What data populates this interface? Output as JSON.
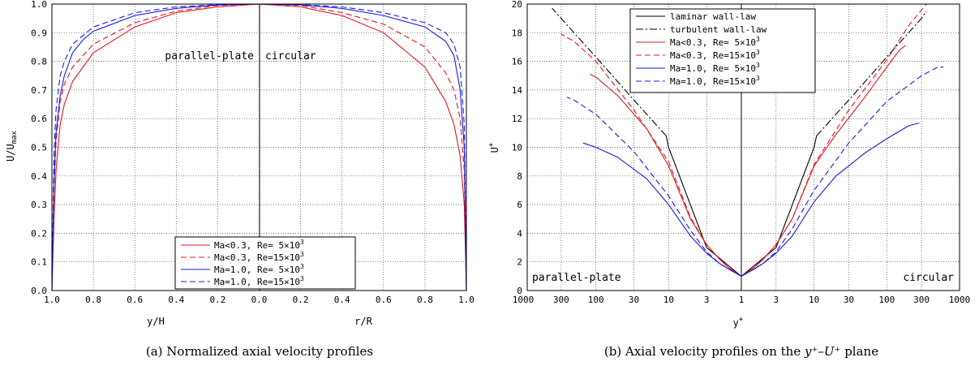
{
  "figure": {
    "caption_a": "(a) Normalized axial velocity profiles",
    "caption_b_prefix": "(b) Axial velocity profiles on the ",
    "caption_b_math": "y⁺–U⁺",
    "caption_b_suffix": " plane"
  },
  "colors": {
    "red": "#e8141a",
    "blue": "#1a1ae8",
    "black": "#000000",
    "grid": "#444444"
  },
  "chart_data": [
    {
      "id": "a",
      "type": "line",
      "title": "",
      "xlabel_left": "y/H",
      "xlabel_right": "r/R",
      "ylabel": "U/U",
      "ylabel_sub": "max",
      "x_ticks": [
        "1.0",
        "0.8",
        "0.6",
        "0.4",
        "0.2",
        "0.0",
        "0.2",
        "0.4",
        "0.6",
        "0.8",
        "1.0"
      ],
      "y_ticks": [
        "0.0",
        "0.1",
        "0.2",
        "0.3",
        "0.4",
        "0.5",
        "0.6",
        "0.7",
        "0.8",
        "0.9",
        "1.0"
      ],
      "xlim": [
        -1,
        1
      ],
      "ylim": [
        0,
        1
      ],
      "grid": true,
      "annotations": [
        "parallel-plate",
        "circular"
      ],
      "legend_position": "bottom-right",
      "legend": [
        {
          "prefix": "Ma<0.3, Re= 5×10",
          "sup": "3",
          "color": "red",
          "dash": false
        },
        {
          "prefix": "Ma<0.3, Re=15×10",
          "sup": "3",
          "color": "red",
          "dash": true
        },
        {
          "prefix": "Ma=1.0, Re= 5×10",
          "sup": "3",
          "color": "blue",
          "dash": false
        },
        {
          "prefix": "Ma=1.0, Re=15×10",
          "sup": "3",
          "color": "blue",
          "dash": true
        }
      ],
      "series_note": "x is signed distance from center: negative = parallel-plate y/H, positive = circular r/R",
      "series": [
        {
          "color": "red",
          "dash": false,
          "points": [
            [
              -1.0,
              0.0
            ],
            [
              -0.99,
              0.25
            ],
            [
              -0.98,
              0.42
            ],
            [
              -0.96,
              0.58
            ],
            [
              -0.94,
              0.65
            ],
            [
              -0.9,
              0.73
            ],
            [
              -0.8,
              0.83
            ],
            [
              -0.6,
              0.92
            ],
            [
              -0.4,
              0.97
            ],
            [
              -0.2,
              0.99
            ],
            [
              0.0,
              1.0
            ],
            [
              0.2,
              0.99
            ],
            [
              0.4,
              0.96
            ],
            [
              0.6,
              0.9
            ],
            [
              0.8,
              0.78
            ],
            [
              0.9,
              0.66
            ],
            [
              0.94,
              0.58
            ],
            [
              0.97,
              0.47
            ],
            [
              0.99,
              0.3
            ],
            [
              1.0,
              0.0
            ]
          ]
        },
        {
          "color": "red",
          "dash": true,
          "points": [
            [
              -1.0,
              0.0
            ],
            [
              -0.99,
              0.35
            ],
            [
              -0.98,
              0.52
            ],
            [
              -0.96,
              0.66
            ],
            [
              -0.94,
              0.72
            ],
            [
              -0.9,
              0.78
            ],
            [
              -0.8,
              0.86
            ],
            [
              -0.6,
              0.935
            ],
            [
              -0.4,
              0.975
            ],
            [
              -0.2,
              0.995
            ],
            [
              0.0,
              1.0
            ],
            [
              0.2,
              0.995
            ],
            [
              0.4,
              0.97
            ],
            [
              0.6,
              0.93
            ],
            [
              0.8,
              0.85
            ],
            [
              0.9,
              0.76
            ],
            [
              0.94,
              0.7
            ],
            [
              0.97,
              0.6
            ],
            [
              0.99,
              0.42
            ],
            [
              1.0,
              0.0
            ]
          ]
        },
        {
          "color": "blue",
          "dash": false,
          "points": [
            [
              -1.0,
              0.0
            ],
            [
              -0.99,
              0.38
            ],
            [
              -0.98,
              0.55
            ],
            [
              -0.96,
              0.68
            ],
            [
              -0.94,
              0.75
            ],
            [
              -0.9,
              0.83
            ],
            [
              -0.85,
              0.875
            ],
            [
              -0.8,
              0.905
            ],
            [
              -0.6,
              0.96
            ],
            [
              -0.4,
              0.985
            ],
            [
              -0.2,
              0.997
            ],
            [
              0.0,
              1.0
            ],
            [
              0.2,
              0.997
            ],
            [
              0.4,
              0.985
            ],
            [
              0.6,
              0.96
            ],
            [
              0.8,
              0.92
            ],
            [
              0.9,
              0.87
            ],
            [
              0.94,
              0.82
            ],
            [
              0.97,
              0.7
            ],
            [
              0.99,
              0.5
            ],
            [
              1.0,
              0.0
            ]
          ]
        },
        {
          "color": "blue",
          "dash": true,
          "points": [
            [
              -1.0,
              0.0
            ],
            [
              -0.99,
              0.48
            ],
            [
              -0.98,
              0.63
            ],
            [
              -0.96,
              0.75
            ],
            [
              -0.94,
              0.8
            ],
            [
              -0.9,
              0.86
            ],
            [
              -0.8,
              0.92
            ],
            [
              -0.6,
              0.97
            ],
            [
              -0.4,
              0.99
            ],
            [
              -0.2,
              0.998
            ],
            [
              0.0,
              1.0
            ],
            [
              0.2,
              0.998
            ],
            [
              0.4,
              0.99
            ],
            [
              0.6,
              0.97
            ],
            [
              0.8,
              0.935
            ],
            [
              0.9,
              0.9
            ],
            [
              0.94,
              0.86
            ],
            [
              0.97,
              0.78
            ],
            [
              0.99,
              0.58
            ],
            [
              1.0,
              0.0
            ]
          ]
        }
      ]
    },
    {
      "id": "b",
      "type": "line",
      "title": "",
      "xlabel": "y",
      "xlabel_sup": "+",
      "ylabel": "U",
      "ylabel_sup": "+",
      "x_ticks": [
        "1000",
        "300",
        "100",
        "30",
        "10",
        "3",
        "1",
        "3",
        "10",
        "30",
        "100",
        "300",
        "1000"
      ],
      "y_ticks": [
        "0",
        "2",
        "4",
        "6",
        "8",
        "10",
        "12",
        "14",
        "16",
        "18",
        "20"
      ],
      "x_scale": "log (mirrored about y+=1)",
      "ylim": [
        0,
        20
      ],
      "grid": true,
      "annotations": [
        "parallel-plate",
        "circular"
      ],
      "legend_position": "top-center",
      "legend": [
        {
          "prefix": "laminar wall-law",
          "sup": "",
          "color": "black",
          "dash": "solid"
        },
        {
          "prefix": "turbulent wall-law",
          "sup": "",
          "color": "black",
          "dash": "dashdot"
        },
        {
          "prefix": "Ma<0.3, Re= 5×10",
          "sup": "3",
          "color": "red",
          "dash": "solid"
        },
        {
          "prefix": "Ma<0.3, Re=15×10",
          "sup": "3",
          "color": "red",
          "dash": "dashed"
        },
        {
          "prefix": "Ma=1.0, Re= 5×10",
          "sup": "3",
          "color": "blue",
          "dash": "solid"
        },
        {
          "prefix": "Ma=1.0, Re=15×10",
          "sup": "3",
          "color": "blue",
          "dash": "dashed"
        }
      ],
      "series": [
        {
          "color": "black",
          "dash": "solid",
          "side": -1,
          "points": [
            [
              1,
              1
            ],
            [
              3,
              3
            ],
            [
              10,
              10
            ],
            [
              10.8,
              10.8
            ]
          ]
        },
        {
          "color": "black",
          "dash": "solid",
          "side": 1,
          "points": [
            [
              1,
              1
            ],
            [
              3,
              3
            ],
            [
              10,
              10
            ],
            [
              10.8,
              10.8
            ]
          ]
        },
        {
          "color": "black",
          "dash": "dashdot",
          "side": -1,
          "points": [
            [
              10.8,
              10.8
            ],
            [
              30,
              13.3
            ],
            [
              100,
              16.3
            ],
            [
              300,
              19.0
            ],
            [
              400,
              19.7
            ]
          ]
        },
        {
          "color": "black",
          "dash": "dashdot",
          "side": 1,
          "points": [
            [
              10.8,
              10.8
            ],
            [
              30,
              13.3
            ],
            [
              100,
              16.3
            ],
            [
              300,
              19.0
            ],
            [
              350,
              19.5
            ]
          ]
        },
        {
          "color": "red",
          "dash": "solid",
          "side": -1,
          "points": [
            [
              1,
              1
            ],
            [
              1.5,
              1.6
            ],
            [
              2,
              2.2
            ],
            [
              3,
              3.2
            ],
            [
              5,
              5.0
            ],
            [
              10,
              8.7
            ],
            [
              20,
              11.3
            ],
            [
              50,
              13.6
            ],
            [
              100,
              14.9
            ],
            [
              120,
              15.1
            ]
          ]
        },
        {
          "color": "red",
          "dash": "solid",
          "side": 1,
          "points": [
            [
              1,
              1
            ],
            [
              1.5,
              1.6
            ],
            [
              2,
              2.2
            ],
            [
              3,
              3.2
            ],
            [
              5,
              5.0
            ],
            [
              10,
              8.7
            ],
            [
              20,
              10.9
            ],
            [
              50,
              13.5
            ],
            [
              100,
              15.6
            ],
            [
              150,
              16.8
            ],
            [
              180,
              17.1
            ]
          ]
        },
        {
          "color": "red",
          "dash": "dashed",
          "side": -1,
          "points": [
            [
              1,
              1
            ],
            [
              1.5,
              1.6
            ],
            [
              2,
              2.2
            ],
            [
              3,
              3.2
            ],
            [
              5,
              5.1
            ],
            [
              10,
              9.0
            ],
            [
              30,
              12.6
            ],
            [
              100,
              16.0
            ],
            [
              200,
              17.4
            ],
            [
              300,
              17.9
            ]
          ]
        },
        {
          "color": "red",
          "dash": "dashed",
          "side": 1,
          "points": [
            [
              1,
              1
            ],
            [
              1.5,
              1.6
            ],
            [
              2,
              2.2
            ],
            [
              3,
              3.2
            ],
            [
              5,
              5.0
            ],
            [
              10,
              8.8
            ],
            [
              30,
              12.6
            ],
            [
              100,
              16.1
            ],
            [
              200,
              18.5
            ],
            [
              350,
              20.0
            ]
          ]
        },
        {
          "color": "blue",
          "dash": "solid",
          "side": -1,
          "points": [
            [
              1,
              1
            ],
            [
              1.5,
              1.5
            ],
            [
              2,
              1.9
            ],
            [
              3,
              2.6
            ],
            [
              5,
              3.8
            ],
            [
              10,
              6.0
            ],
            [
              20,
              7.8
            ],
            [
              50,
              9.3
            ],
            [
              100,
              10.0
            ],
            [
              150,
              10.3
            ]
          ]
        },
        {
          "color": "blue",
          "dash": "solid",
          "side": 1,
          "points": [
            [
              1,
              1
            ],
            [
              1.5,
              1.5
            ],
            [
              2,
              1.9
            ],
            [
              3,
              2.6
            ],
            [
              5,
              3.8
            ],
            [
              10,
              6.2
            ],
            [
              20,
              8.0
            ],
            [
              50,
              9.6
            ],
            [
              100,
              10.6
            ],
            [
              200,
              11.5
            ],
            [
              280,
              11.7
            ]
          ]
        },
        {
          "color": "blue",
          "dash": "dashed",
          "side": -1,
          "points": [
            [
              1,
              1
            ],
            [
              1.5,
              1.5
            ],
            [
              2,
              1.9
            ],
            [
              3,
              2.7
            ],
            [
              5,
              4.2
            ],
            [
              10,
              6.6
            ],
            [
              30,
              9.7
            ],
            [
              100,
              12.3
            ],
            [
              200,
              13.3
            ],
            [
              250,
              13.5
            ]
          ]
        },
        {
          "color": "blue",
          "dash": "dashed",
          "side": 1,
          "points": [
            [
              1,
              1
            ],
            [
              1.5,
              1.5
            ],
            [
              2,
              1.9
            ],
            [
              3,
              2.7
            ],
            [
              5,
              4.3
            ],
            [
              10,
              7.0
            ],
            [
              30,
              10.3
            ],
            [
              100,
              13.2
            ],
            [
              300,
              15.0
            ],
            [
              500,
              15.6
            ],
            [
              600,
              15.6
            ]
          ]
        }
      ]
    }
  ]
}
